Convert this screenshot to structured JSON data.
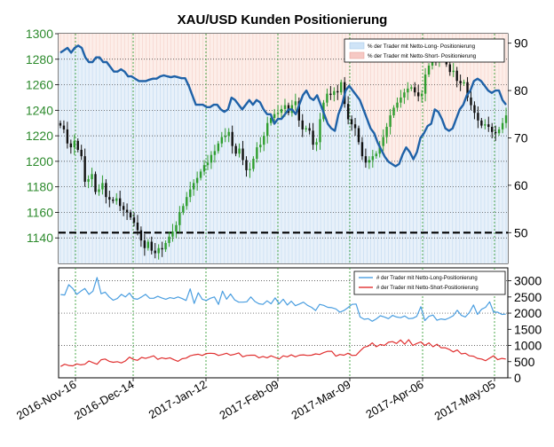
{
  "chart_data": [
    {
      "type": "candlestick+line",
      "title": "XAU/USD Kunden Positionierung",
      "x_tick_labels": [
        "2016-Nov-16",
        "2016-Dec-14",
        "2017-Jan-12",
        "2017-Feb-09",
        "2017-Mar-09",
        "2017-Apr-06",
        "2017-May-05"
      ],
      "left_axis": {
        "ticks": [
          1140,
          1160,
          1180,
          1200,
          1220,
          1240,
          1260,
          1280,
          1300
        ],
        "ylim": [
          1120,
          1300
        ]
      },
      "right_axis": {
        "ticks": [
          50,
          60,
          70,
          80,
          90
        ],
        "ylim": [
          43.5,
          92
        ]
      },
      "reference_line": {
        "axis": "right",
        "value": 50
      },
      "legend": {
        "position": "top-right",
        "entries": [
          "% der Trader mit Netto-Long- Positionierung",
          "% der Trader mit Netto-Short- Positionierung"
        ]
      },
      "series": [
        {
          "name": "XAU/USD",
          "axis": "left",
          "closes": [
            1228,
            1225,
            1214,
            1211,
            1216,
            1209,
            1204,
            1184,
            1186,
            1190,
            1176,
            1178,
            1183,
            1172,
            1170,
            1169,
            1171,
            1165,
            1162,
            1160,
            1156,
            1152,
            1146,
            1138,
            1132,
            1137,
            1130,
            1128,
            1132,
            1131,
            1136,
            1141,
            1145,
            1150,
            1160,
            1165,
            1172,
            1178,
            1183,
            1187,
            1192,
            1197,
            1199,
            1205,
            1208,
            1214,
            1219,
            1220,
            1223,
            1212,
            1206,
            1210,
            1201,
            1193,
            1194,
            1202,
            1211,
            1213,
            1220,
            1230,
            1234,
            1237,
            1238,
            1241,
            1244,
            1238,
            1244,
            1247,
            1232,
            1225,
            1226,
            1224,
            1213,
            1215,
            1233,
            1246,
            1253,
            1252,
            1255,
            1254,
            1262,
            1245,
            1233,
            1229,
            1226,
            1215,
            1204,
            1199,
            1201,
            1204,
            1206,
            1212,
            1219,
            1227,
            1236,
            1242,
            1246,
            1250,
            1254,
            1257,
            1258,
            1254,
            1251,
            1253,
            1268,
            1275,
            1282,
            1279,
            1286,
            1284,
            1276,
            1270,
            1271,
            1263,
            1261,
            1262,
            1250,
            1244,
            1238,
            1232,
            1228,
            1229,
            1227,
            1223,
            1222,
            1225,
            1230,
            1236
          ]
        },
        {
          "name": "% Netto-Long",
          "axis": "right",
          "values": [
            88,
            88.5,
            89,
            88,
            89,
            89.5,
            89,
            87,
            86,
            86,
            87,
            87,
            86,
            86,
            85,
            84,
            84,
            84.5,
            84,
            83,
            83,
            82.5,
            82,
            82,
            82,
            82.3,
            82.5,
            82.5,
            83,
            83.2,
            83,
            82.8,
            83,
            82.8,
            82.6,
            82.6,
            81,
            79,
            77,
            77,
            77,
            76.5,
            76.5,
            77,
            77,
            76,
            75.5,
            76,
            78.5,
            78,
            77,
            76,
            77,
            78,
            77,
            78,
            77.5,
            76,
            75,
            75,
            73,
            74,
            74,
            75,
            76,
            76,
            75,
            77,
            79,
            80,
            78.5,
            78,
            79,
            77,
            75,
            73,
            72,
            71.5,
            75,
            77,
            80,
            81,
            80,
            79,
            78,
            76,
            74,
            72,
            71,
            69,
            67.5,
            66,
            65,
            64.5,
            64,
            64.5,
            66.5,
            68,
            67,
            65.5,
            67,
            70,
            71,
            72.5,
            73,
            76,
            75.5,
            74,
            72,
            71.5,
            72,
            74,
            76,
            77,
            79,
            80,
            82,
            82.5,
            82,
            81,
            80,
            79.5,
            80,
            80,
            78,
            77
          ]
        }
      ]
    },
    {
      "type": "line",
      "left_axis": {
        "ticks": [],
        "ylim": [
          0,
          3400
        ]
      },
      "right_axis": {
        "ticks": [
          0,
          500,
          1000,
          1500,
          2000,
          2500,
          3000
        ],
        "ylim": [
          0,
          3400
        ]
      },
      "legend": {
        "position": "top-right",
        "entries": [
          "# der Trader mit Netto-Long-Positionierung",
          "# der Trader mit Netto-Short-Positionierung"
        ]
      },
      "series": [
        {
          "name": "# der Trader mit Netto-Long-Positionierung",
          "color": "#4a9ee0",
          "values": [
            2575,
            2560,
            2880,
            2760,
            2580,
            2680,
            2760,
            2580,
            2680,
            3100,
            2600,
            2650,
            2500,
            2400,
            2450,
            2580,
            2500,
            2620,
            2450,
            2430,
            2500,
            2580,
            2460,
            2460,
            2520,
            2470,
            2430,
            2480,
            2450,
            2500,
            2450,
            2390,
            2750,
            2300,
            2630,
            2430,
            2390,
            2460,
            2500,
            2270,
            2680,
            2430,
            2590,
            2410,
            2340,
            2340,
            2350,
            2500,
            2360,
            2290,
            2270,
            2380,
            2290,
            2470,
            2290,
            2430,
            2250,
            2370,
            2230,
            2280,
            2340,
            2240,
            2180,
            2080,
            2270,
            2240,
            2180,
            2170,
            2130,
            2030,
            2080,
            2170,
            2270,
            2280,
            1880,
            1810,
            1830,
            1750,
            1820,
            1920,
            1880,
            1830,
            1930,
            1880,
            1860,
            1910,
            1830,
            1840,
            1900,
            2200,
            1770,
            1900,
            1940,
            1780,
            1820,
            1800,
            1850,
            1920,
            2090,
            1930,
            1880,
            2020,
            2250,
            1960,
            2120,
            2180,
            2350,
            2030,
            2030,
            1960,
            1970
          ]
        },
        {
          "name": "# der Trader mit Netto-Short-Positionierung",
          "color": "#e03030",
          "values": [
            350,
            420,
            380,
            370,
            430,
            400,
            420,
            520,
            470,
            420,
            560,
            580,
            510,
            480,
            500,
            460,
            520,
            640,
            570,
            540,
            630,
            600,
            640,
            680,
            570,
            620,
            590,
            620,
            560,
            510,
            590,
            610,
            680,
            710,
            730,
            690,
            750,
            760,
            750,
            690,
            720,
            760,
            700,
            730,
            770,
            650,
            690,
            700,
            700,
            620,
            660,
            620,
            680,
            630,
            580,
            680,
            650,
            710,
            650,
            700,
            710,
            690,
            700,
            740,
            720,
            780,
            820,
            820,
            670,
            720,
            700,
            760,
            690,
            700,
            830,
            950,
            980,
            1080,
            960,
            1030,
            1000,
            1100,
            1120,
            1060,
            1170,
            1040,
            1180,
            1000,
            1060,
            1110,
            1000,
            1080,
            960,
            1040,
            930,
            930,
            880,
            800,
            860,
            740,
            760,
            680,
            670,
            600,
            580,
            530,
            610,
            680,
            560,
            600,
            580
          ]
        }
      ]
    }
  ]
}
